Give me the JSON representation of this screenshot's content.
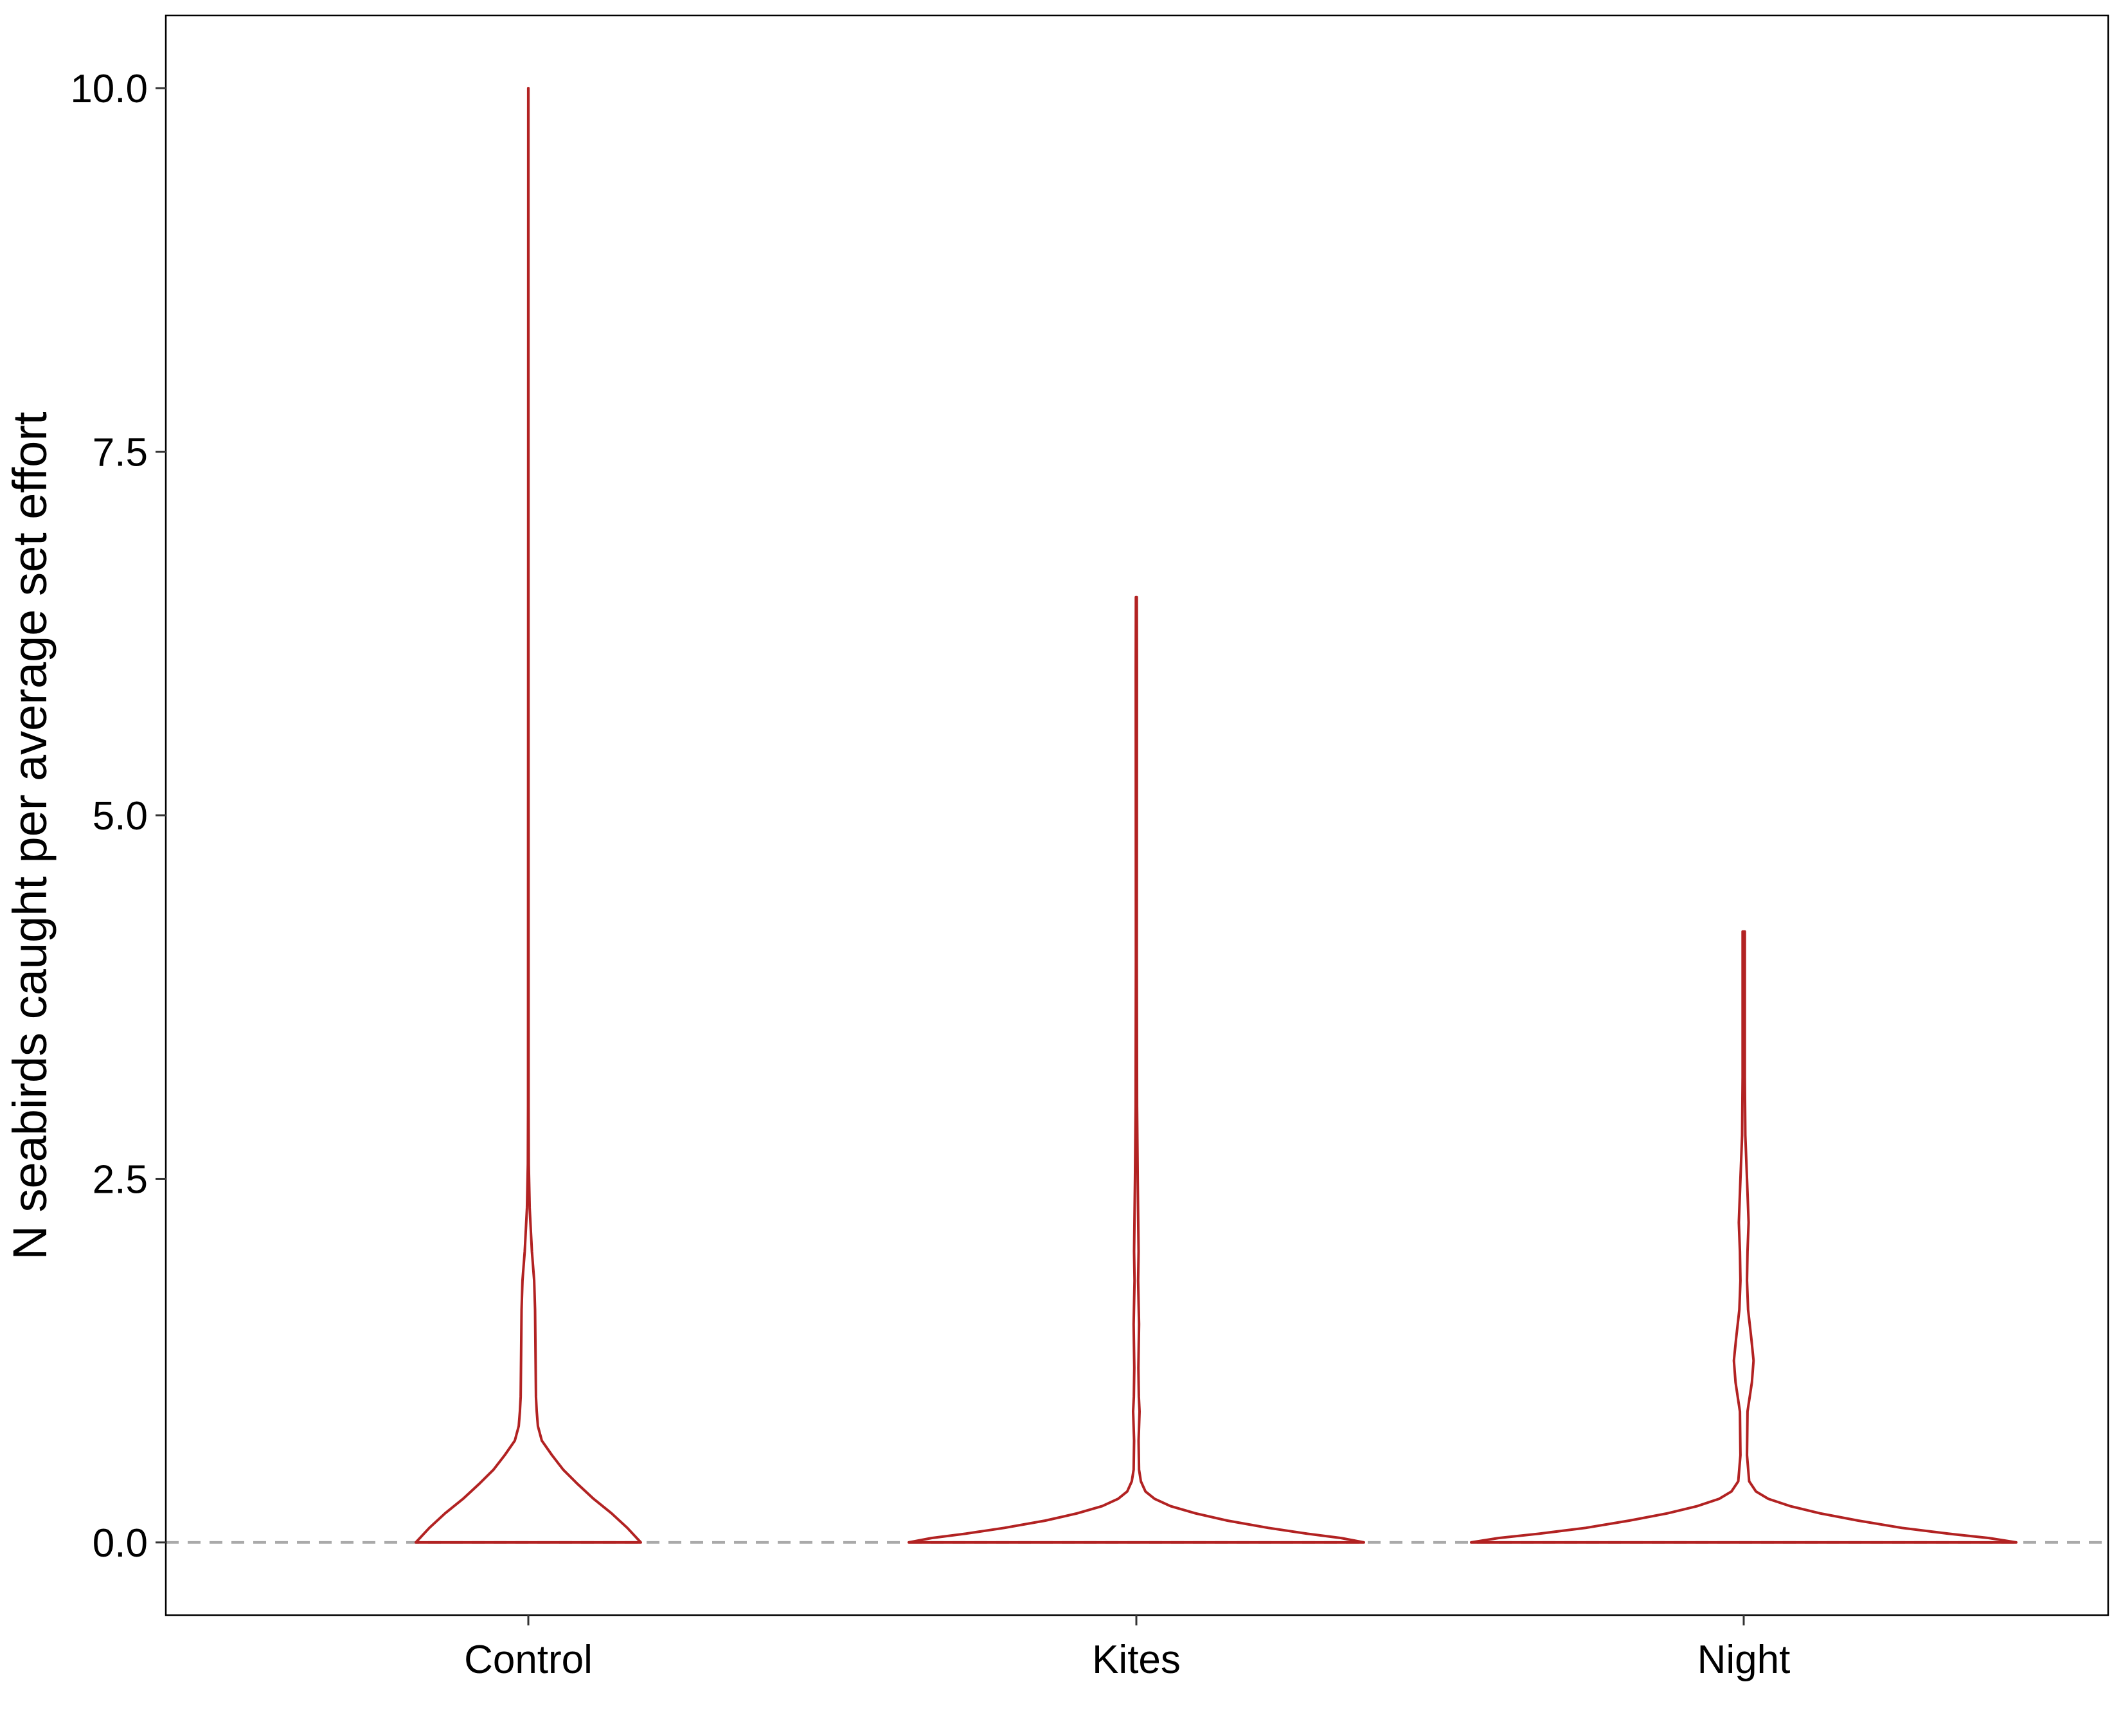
{
  "chart_data": {
    "type": "violin",
    "title": "",
    "xlabel": "",
    "ylabel": "N seabirds caught per average set effort",
    "categories": [
      "Control",
      "Kites",
      "Night"
    ],
    "ylim": [
      -0.5,
      10.5
    ],
    "yticks": [
      0,
      2.5,
      5,
      7.5,
      10
    ],
    "ytick_labels": [
      "0.0",
      "2.5",
      "5.0",
      "7.5",
      "10.0"
    ],
    "grid": false,
    "legend": "none",
    "reference_line": {
      "y": 0,
      "style": "dashed",
      "color": "#aaaaaa"
    },
    "violin_color": "#b22222",
    "series": [
      {
        "category": "Control",
        "y_max": 10.0,
        "density_profile": [
          [
            0.0,
            1.0
          ],
          [
            0.1,
            0.88
          ],
          [
            0.2,
            0.74
          ],
          [
            0.3,
            0.58
          ],
          [
            0.4,
            0.44
          ],
          [
            0.5,
            0.31
          ],
          [
            0.6,
            0.21
          ],
          [
            0.7,
            0.12
          ],
          [
            0.8,
            0.085
          ],
          [
            0.9,
            0.075
          ],
          [
            1.0,
            0.068
          ],
          [
            1.3,
            0.064
          ],
          [
            1.6,
            0.06
          ],
          [
            1.8,
            0.052
          ],
          [
            2.0,
            0.032
          ],
          [
            2.3,
            0.012
          ],
          [
            2.6,
            0.004
          ],
          [
            3.0,
            0.002
          ],
          [
            5.0,
            0.0015
          ],
          [
            7.0,
            0.001
          ],
          [
            10.0,
            0.0005
          ]
        ]
      },
      {
        "category": "Kites",
        "y_max": 6.5,
        "density_profile": [
          [
            0.0,
            1.0
          ],
          [
            0.03,
            0.9
          ],
          [
            0.06,
            0.75
          ],
          [
            0.1,
            0.58
          ],
          [
            0.15,
            0.4
          ],
          [
            0.2,
            0.26
          ],
          [
            0.25,
            0.15
          ],
          [
            0.3,
            0.08
          ],
          [
            0.35,
            0.04
          ],
          [
            0.42,
            0.02
          ],
          [
            0.5,
            0.012
          ],
          [
            0.7,
            0.01
          ],
          [
            0.9,
            0.014
          ],
          [
            1.0,
            0.011
          ],
          [
            1.2,
            0.009
          ],
          [
            1.5,
            0.012
          ],
          [
            1.8,
            0.008
          ],
          [
            2.0,
            0.01
          ],
          [
            2.5,
            0.006
          ],
          [
            3.0,
            0.003
          ],
          [
            4.0,
            0.002
          ],
          [
            6.0,
            0.0025
          ],
          [
            6.5,
            0.002
          ]
        ]
      },
      {
        "category": "Night",
        "y_max": 4.2,
        "density_profile": [
          [
            0.0,
            1.0
          ],
          [
            0.03,
            0.9
          ],
          [
            0.06,
            0.75
          ],
          [
            0.1,
            0.58
          ],
          [
            0.15,
            0.42
          ],
          [
            0.2,
            0.28
          ],
          [
            0.25,
            0.17
          ],
          [
            0.3,
            0.09
          ],
          [
            0.35,
            0.045
          ],
          [
            0.42,
            0.02
          ],
          [
            0.6,
            0.012
          ],
          [
            0.9,
            0.014
          ],
          [
            1.1,
            0.03
          ],
          [
            1.25,
            0.036
          ],
          [
            1.4,
            0.028
          ],
          [
            1.6,
            0.016
          ],
          [
            1.8,
            0.012
          ],
          [
            2.0,
            0.014
          ],
          [
            2.2,
            0.018
          ],
          [
            2.5,
            0.012
          ],
          [
            2.8,
            0.006
          ],
          [
            3.2,
            0.004
          ],
          [
            4.0,
            0.004
          ],
          [
            4.2,
            0.004
          ]
        ]
      }
    ]
  }
}
